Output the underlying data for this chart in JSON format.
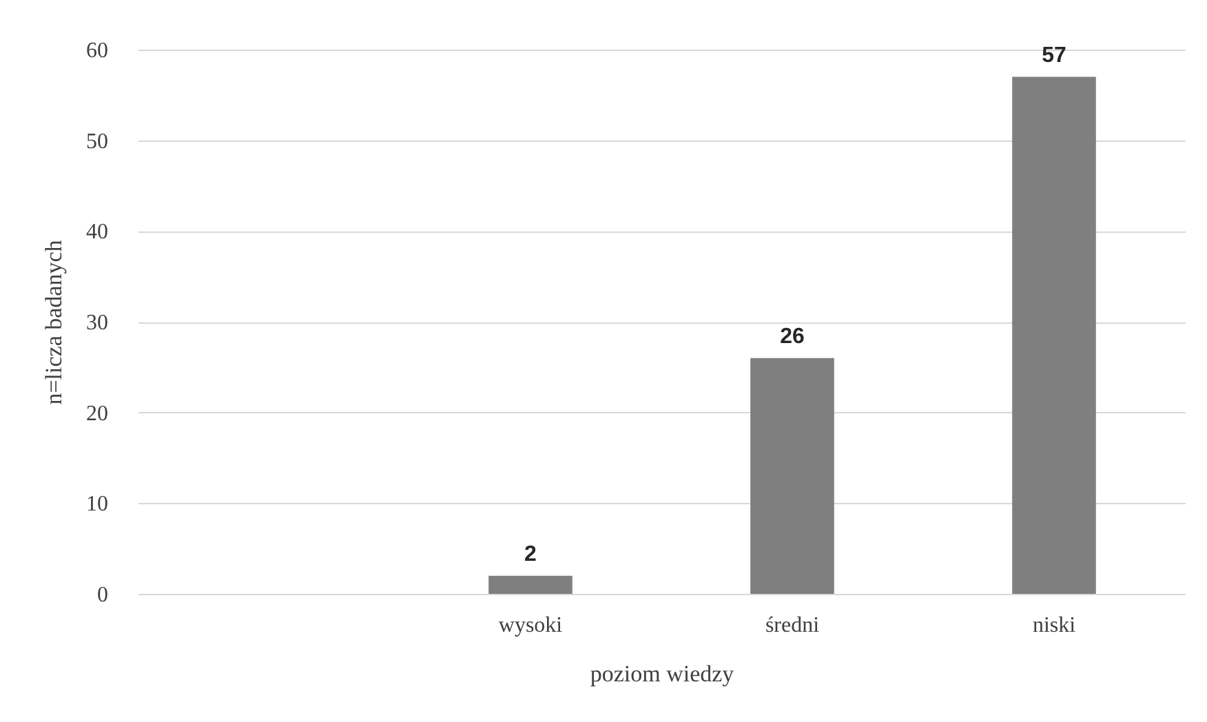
{
  "chart_data": {
    "type": "bar",
    "xlabel": "poziom wiedzy",
    "ylabel": "n=licza badanych",
    "categories": [
      null,
      "wysoki",
      "średni",
      "niski"
    ],
    "values": [
      null,
      2,
      26,
      57
    ],
    "color": "#7f7f7f",
    "ylim": [
      0,
      60
    ],
    "yticks": [
      0,
      10,
      20,
      30,
      40,
      50,
      60
    ],
    "grid": "y",
    "data_labels": true
  }
}
